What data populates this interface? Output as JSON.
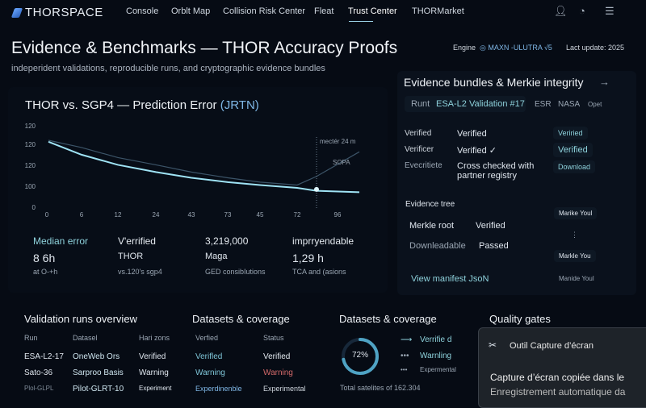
{
  "nav": {
    "brand": "THORSPACE",
    "items": [
      "Console",
      "Orblt Map",
      "Collision Risk Center",
      "Fleat",
      "Trust Center",
      "THORMarket"
    ],
    "active": "Trust Center",
    "icons": [
      "user-icon",
      "gauge-icon",
      "menu-icon"
    ]
  },
  "header": {
    "title": "Evidence & Benchmarks — THOR Accuracy Proofs",
    "subtitle": "indeperident validations, reproducible runs, and cryptographic evidence bundles",
    "engine_label": "Engine",
    "engine_value": "◎ MAXN -ULUTRA √5",
    "last_update": "Lact update: 2025"
  },
  "chart_data": {
    "type": "line",
    "title": "THOR vs. SGP4 — Prediction Error",
    "title_unit": "(JRTN)",
    "x_ticks": [
      "0",
      "6",
      "12",
      "24",
      "43",
      "73",
      "45",
      "72",
      "96"
    ],
    "y_ticks": [
      "120",
      "120",
      "120",
      "100",
      "0"
    ],
    "series": [
      {
        "values": [
          122,
          113,
          106,
          101,
          97,
          94,
          92,
          90,
          88,
          87
        ]
      },
      {
        "values": [
          123,
          118,
          111,
          106,
          101,
          97,
          94,
          92,
          98,
          115
        ]
      }
    ],
    "annotation": "mectér 24 m",
    "series_label": "SOPA",
    "accent": "#9fe3f5"
  },
  "stats": [
    {
      "label": "Median error",
      "value": "8 6h",
      "note": "at O-+h"
    },
    {
      "label": "V'errified",
      "value": "THOR",
      "note": "vs.120's sgp4"
    },
    {
      "label": "3,219,000",
      "value": "Maga",
      "note": "GED consibIutions"
    },
    {
      "label": "imprryendable",
      "value": "1,29 h",
      "note": "TCA and (asions"
    }
  ],
  "evidence": {
    "title": "Evidence bundles & Merkie integrity",
    "run_label": "Runt",
    "run_value": "ESA-L2 Validation #17",
    "tabs": [
      "ESR",
      "NASA",
      "Opet"
    ],
    "rows": [
      {
        "k": "Verified",
        "v": "Verified"
      },
      {
        "k": "Verificer",
        "v": "Verified ✓"
      },
      {
        "k": "Evecritiete",
        "v": "Cross checked with partner registry"
      }
    ],
    "side_buttons": [
      "Veriried",
      "Verified",
      "Download"
    ],
    "tree_title": "Evidence tree",
    "tree": [
      {
        "k": "Merkle root",
        "v": "Verified"
      },
      {
        "k": "Downleadable",
        "v": "Passed"
      }
    ],
    "tree_nodes": [
      "Marike Youl",
      "Markle You",
      "Manide Youl"
    ],
    "manifest_link": "View manifest JsoN"
  },
  "runs": {
    "title": "Validation runs overview",
    "headers": [
      "Run",
      "Datasel",
      "Hari zons"
    ],
    "rows": [
      [
        "ESA-L2-17",
        "OneWeb Ors",
        "Verified"
      ],
      [
        "Sato-36",
        "Sarproo Basis",
        "Warning"
      ],
      [
        "Plol-GLPL",
        "Pilot-GLRT-10",
        "Experiment"
      ]
    ]
  },
  "datasets": {
    "title": "Datasets & coverage",
    "headers": [
      "Verfied",
      "Status"
    ],
    "rows": [
      [
        "Verifled",
        "Verified"
      ],
      [
        "Warning",
        "Warning"
      ],
      [
        "Experdinenble",
        "Experimental"
      ]
    ]
  },
  "coverage": {
    "title": "Datasets & coverage",
    "percent": 72,
    "percent_label": "72%",
    "legend": [
      "Verrifie d",
      "Warnling",
      "Expermental"
    ],
    "total": "Total satelites of 162.304"
  },
  "quality": {
    "title": "Quality gates"
  },
  "toast": {
    "app": "Outil Capture d’écran",
    "line1": "Capture d’écran copiée dans le",
    "line2": "Enregistrement automatique da"
  }
}
